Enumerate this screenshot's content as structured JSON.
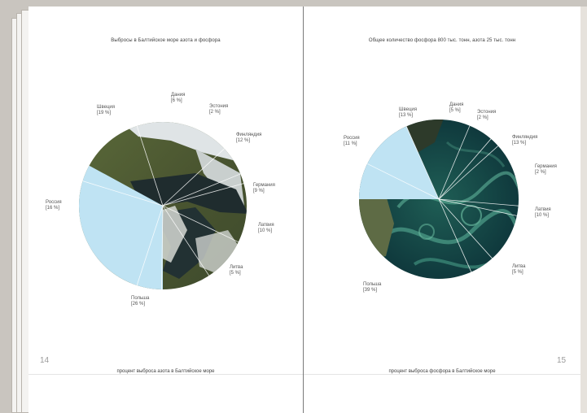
{
  "left_page": {
    "title": "Выбросы в Балтийское море азота и фосфора",
    "footer": "процент выброса азота в Балтийское море",
    "page_number": "14",
    "chart_data": {
      "type": "pie",
      "title": "Выбросы в Балтийское море азота и фосфора",
      "subtitle": "процент выброса азота в Балтийское море",
      "slices": [
        {
          "name": "Швеция",
          "label": "[19 %]",
          "value": 19
        },
        {
          "name": "Дания",
          "label": "[6 %]",
          "value": 6
        },
        {
          "name": "Эстония",
          "label": "[2 %]",
          "value": 2
        },
        {
          "name": "Финляндия",
          "label": "[12 %]",
          "value": 12
        },
        {
          "name": "Германия",
          "label": "[9 %]",
          "value": 9
        },
        {
          "name": "Латвия",
          "label": "[10 %]",
          "value": 10
        },
        {
          "name": "Литва",
          "label": "[5 %]",
          "value": 5
        },
        {
          "name": "Польша",
          "label": "[26 %]",
          "value": 26
        },
        {
          "name": "Россия",
          "label": "[16 %]",
          "value": 16
        }
      ],
      "highlighted_slice": "Россия",
      "highlight_color": "#bfe3f3",
      "fill": "satellite-image-land"
    }
  },
  "right_page": {
    "title": "Общее количество фосфора 800 тыс. тонн, азота 25 тыс. тонн",
    "footer": "процент выброса фосфора в Балтийское море",
    "page_number": "15",
    "chart_data": {
      "type": "pie",
      "title": "Общее количество фосфора 800 тыс. тонн, азота 25 тыс. тонн",
      "subtitle": "процент выброса фосфора в Балтийское море",
      "slices": [
        {
          "name": "Швеция",
          "label": "[13 %]",
          "value": 13
        },
        {
          "name": "Дания",
          "label": "[5 %]",
          "value": 5
        },
        {
          "name": "Эстония",
          "label": "[2 %]",
          "value": 2
        },
        {
          "name": "Финляндия",
          "label": "[13 %]",
          "value": 13
        },
        {
          "name": "Германия",
          "label": "[2 %]",
          "value": 2
        },
        {
          "name": "Латвия",
          "label": "[10 %]",
          "value": 10
        },
        {
          "name": "Литва",
          "label": "[5 %]",
          "value": 5
        },
        {
          "name": "Польша",
          "label": "[39 %]",
          "value": 39
        },
        {
          "name": "Россия",
          "label": "[11 %]",
          "value": 11
        }
      ],
      "highlighted_slice": "Россия",
      "highlight_color": "#bfe3f3",
      "fill": "satellite-image-algae-bloom"
    }
  },
  "colors": {
    "background": "#c9c5bf",
    "page": "#ffffff",
    "text": "#404040",
    "page_number": "#9a9a9a"
  }
}
